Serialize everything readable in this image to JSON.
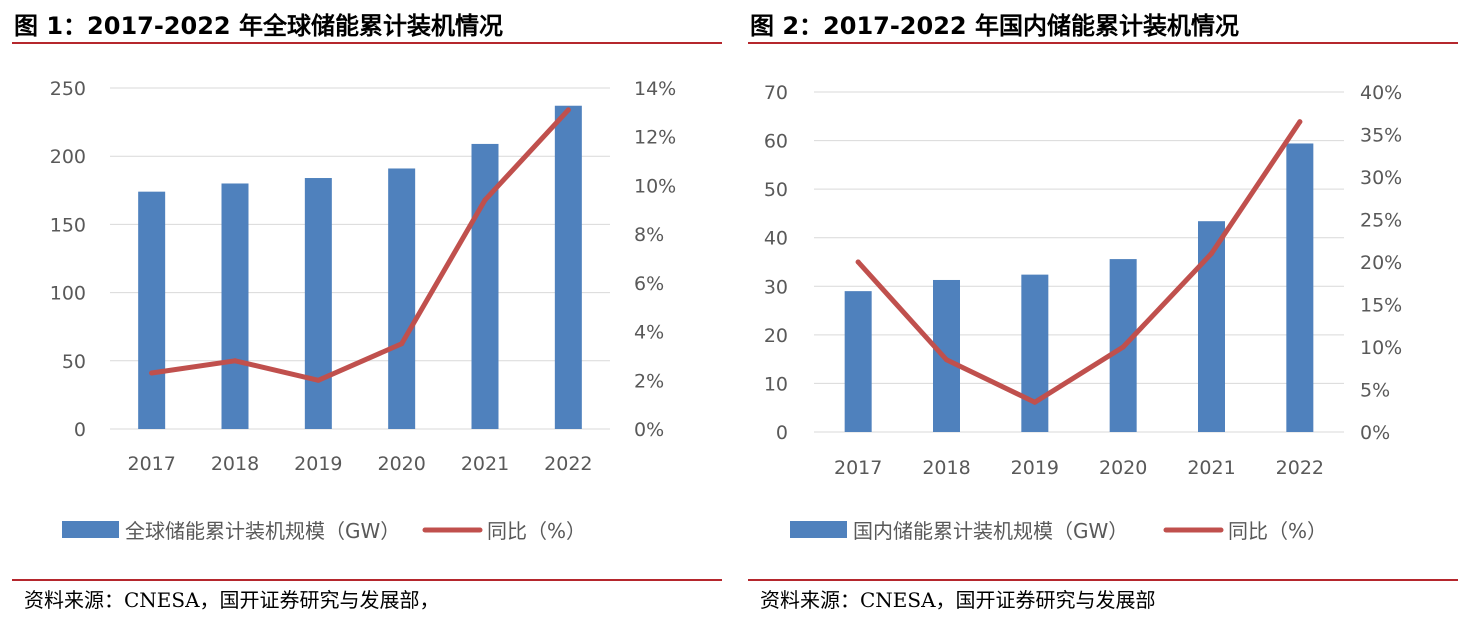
{
  "colors": {
    "bar": "#4f81bd",
    "line": "#c0504d",
    "grid": "#d9d9d9",
    "rule": "#b5272d"
  },
  "figures": [
    {
      "title": "图 1：2017-2022 年全球储能累计装机情况",
      "source": "资料来源：CNESA，国开证券研究与发展部，"
    },
    {
      "title": "图 2：2017-2022 年国内储能累计装机情况",
      "source": "资料来源：CNESA，国开证券研究与发展部"
    }
  ],
  "chart_data": [
    {
      "type": "bar",
      "categories": [
        "2017",
        "2018",
        "2019",
        "2020",
        "2021",
        "2022"
      ],
      "series": [
        {
          "name": "全球储能累计装机规模（GW）",
          "type": "bar",
          "axis": "left",
          "values": [
            174,
            180,
            184,
            191,
            209,
            237
          ]
        },
        {
          "name": "同比（%）",
          "type": "line",
          "axis": "right",
          "values": [
            2.3,
            2.8,
            2.0,
            3.5,
            9.4,
            13.1
          ]
        }
      ],
      "y_left": {
        "min": 0,
        "max": 250,
        "step": 50,
        "tick_suffix": ""
      },
      "y_right": {
        "min": 0,
        "max": 14,
        "step": 2,
        "tick_suffix": "%"
      },
      "grid": true,
      "legend": "bottom"
    },
    {
      "type": "bar",
      "categories": [
        "2017",
        "2018",
        "2019",
        "2020",
        "2021",
        "2022"
      ],
      "series": [
        {
          "name": "国内储能累计装机规模（GW）",
          "type": "bar",
          "axis": "left",
          "values": [
            29,
            31.3,
            32.4,
            35.6,
            43.4,
            59.4
          ]
        },
        {
          "name": "同比（%）",
          "type": "line",
          "axis": "right",
          "values": [
            20.0,
            8.5,
            3.5,
            10.0,
            21.0,
            36.5
          ]
        }
      ],
      "y_left": {
        "min": 0,
        "max": 70,
        "step": 10,
        "tick_suffix": ""
      },
      "y_right": {
        "min": 0,
        "max": 40,
        "step": 5,
        "tick_suffix": "%"
      },
      "grid": true,
      "legend": "bottom"
    }
  ]
}
